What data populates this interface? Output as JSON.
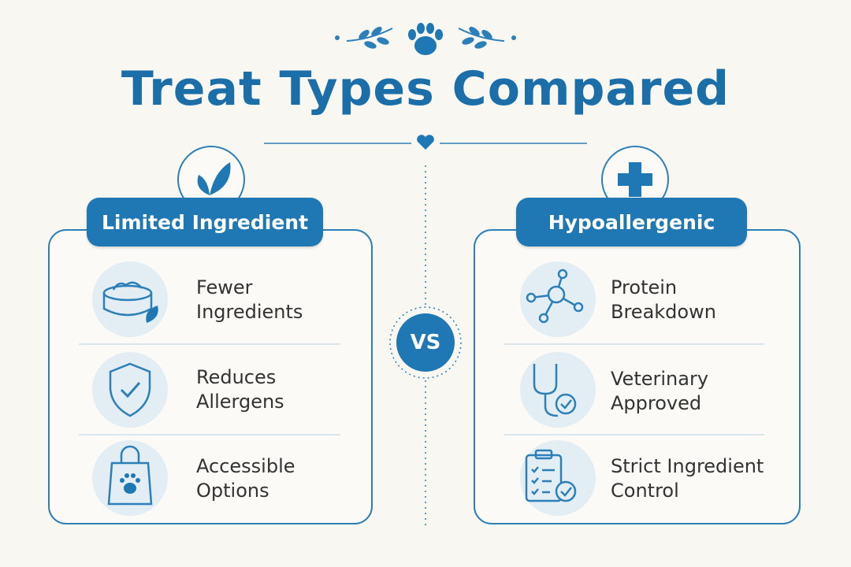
{
  "header": {
    "title": "Treat Types Compared"
  },
  "vs_label": "VS",
  "panels": [
    {
      "title": "Limited Ingredient",
      "items": [
        "Fewer Ingredients",
        "Reduces Allergens",
        "Accessible Options"
      ]
    },
    {
      "title": "Hypoallergenic",
      "items": [
        "Protein Breakdown",
        "Veterinary Approved",
        "Strict Ingredient Control"
      ]
    }
  ]
}
